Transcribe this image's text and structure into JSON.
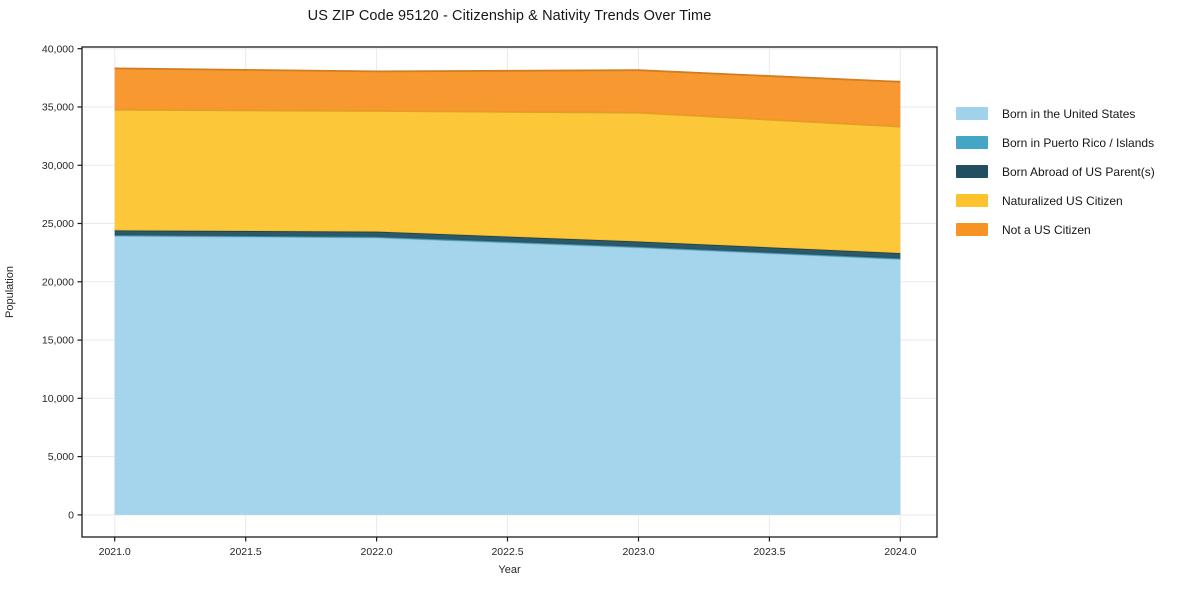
{
  "title": "US ZIP Code 95120 - Citizenship & Nativity Trends Over Time",
  "chart_data": {
    "type": "area",
    "stacked": true,
    "title": "US ZIP Code 95120 - Citizenship & Nativity Trends Over Time",
    "xlabel": "Year",
    "ylabel": "Population",
    "x": [
      2021,
      2022,
      2023,
      2024
    ],
    "series": [
      {
        "name": "Born in the United States",
        "color": "#9fd2eb",
        "values": [
          23950,
          23800,
          22950,
          21950
        ]
      },
      {
        "name": "Born in Puerto Rico / Islands",
        "color": "#45a5c5",
        "values": [
          60,
          60,
          60,
          60
        ]
      },
      {
        "name": "Born Abroad of US Parent(s)",
        "color": "#1f4f60",
        "values": [
          400,
          450,
          450,
          450
        ]
      },
      {
        "name": "Naturalized US Citizen",
        "color": "#fdc32e",
        "values": [
          10350,
          10350,
          11050,
          10850
        ]
      },
      {
        "name": "Not a US Citizen",
        "color": "#f79323",
        "values": [
          3550,
          3400,
          3650,
          3850
        ]
      }
    ],
    "xlim": [
      2020.875,
      2024.14
    ],
    "ylim": [
      -1900,
      40150
    ],
    "xticks": [
      2021.0,
      2021.5,
      2022.0,
      2022.5,
      2023.0,
      2023.5,
      2024.0
    ],
    "xtick_labels": [
      "2021.0",
      "2021.5",
      "2022.0",
      "2022.5",
      "2023.0",
      "2023.5",
      "2024.0"
    ],
    "yticks": [
      0,
      5000,
      10000,
      15000,
      20000,
      25000,
      30000,
      35000,
      40000
    ],
    "ytick_labels": [
      "0",
      "5,000",
      "10,000",
      "15,000",
      "20,000",
      "25,000",
      "30,000",
      "35,000",
      "40,000"
    ],
    "grid": true,
    "grid_color": "#e9e9ef",
    "spine_color": "#1b1b1b",
    "tick_label_color": "#262626",
    "fill_opacity": 0.94,
    "legend_position": "right-outside"
  }
}
